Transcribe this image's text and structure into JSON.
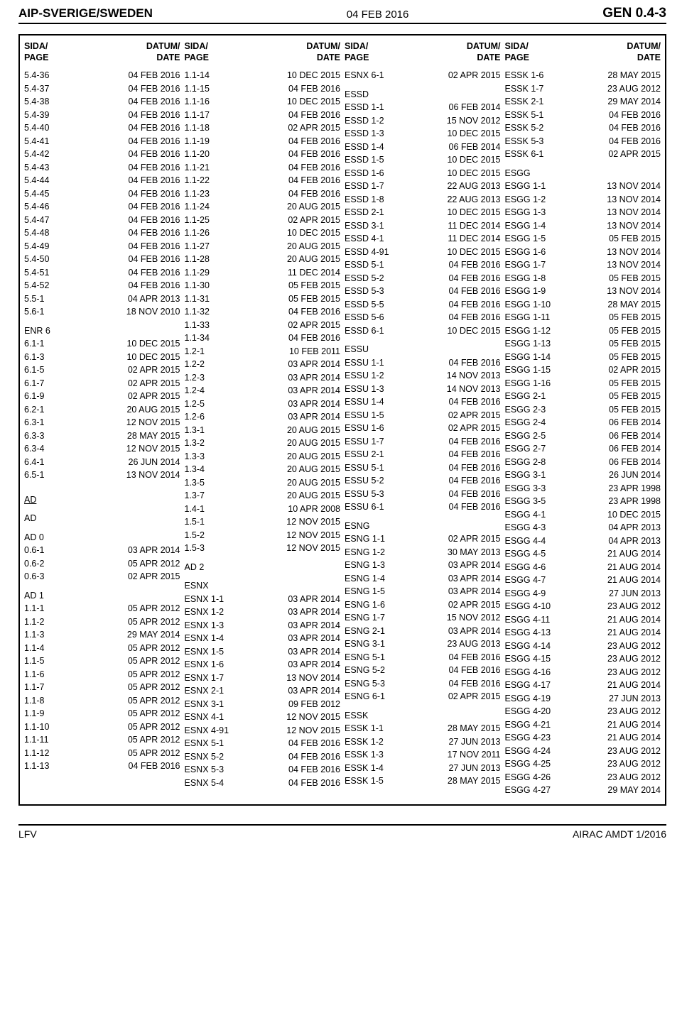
{
  "header": {
    "left": "AIP-SVERIGE/SWEDEN",
    "center": "04 FEB 2016",
    "right": "GEN 0.4-3"
  },
  "footer": {
    "left": "LFV",
    "right": "AIRAC AMDT 1/2016"
  },
  "colhead": {
    "page": "SIDA/\nPAGE",
    "date": "DATUM/\nDATE"
  },
  "col1": [
    {
      "p": "5.4-36",
      "d": "04 FEB 2016"
    },
    {
      "p": "5.4-37",
      "d": "04 FEB 2016"
    },
    {
      "p": "5.4-38",
      "d": "04 FEB 2016"
    },
    {
      "p": "5.4-39",
      "d": "04 FEB 2016"
    },
    {
      "p": "5.4-40",
      "d": "04 FEB 2016"
    },
    {
      "p": "5.4-41",
      "d": "04 FEB 2016"
    },
    {
      "p": "5.4-42",
      "d": "04 FEB 2016"
    },
    {
      "p": "5.4-43",
      "d": "04 FEB 2016"
    },
    {
      "p": "5.4-44",
      "d": "04 FEB 2016"
    },
    {
      "p": "5.4-45",
      "d": "04 FEB 2016"
    },
    {
      "p": "5.4-46",
      "d": "04 FEB 2016"
    },
    {
      "p": "5.4-47",
      "d": "04 FEB 2016"
    },
    {
      "p": "5.4-48",
      "d": "04 FEB 2016"
    },
    {
      "p": "5.4-49",
      "d": "04 FEB 2016"
    },
    {
      "p": "5.4-50",
      "d": "04 FEB 2016"
    },
    {
      "p": "5.4-51",
      "d": "04 FEB 2016"
    },
    {
      "p": "5.4-52",
      "d": "04 FEB 2016"
    },
    {
      "p": "5.5-1",
      "d": "04 APR 2013"
    },
    {
      "p": "5.6-1",
      "d": "18 NOV 2010"
    },
    {
      "gap": true
    },
    {
      "section": "ENR 6"
    },
    {
      "p": "6.1-1",
      "d": "10 DEC 2015"
    },
    {
      "p": "6.1-3",
      "d": "10 DEC 2015"
    },
    {
      "p": "6.1-5",
      "d": "02 APR 2015"
    },
    {
      "p": "6.1-7",
      "d": "02 APR 2015"
    },
    {
      "p": "6.1-9",
      "d": "02 APR 2015"
    },
    {
      "p": "6.2-1",
      "d": "20 AUG 2015"
    },
    {
      "p": "6.3-1",
      "d": "12 NOV 2015"
    },
    {
      "p": "6.3-3",
      "d": "28 MAY 2015"
    },
    {
      "p": "6.3-4",
      "d": "12 NOV 2015"
    },
    {
      "p": "6.4-1",
      "d": "26 JUN 2014"
    },
    {
      "p": "6.5-1",
      "d": "13 NOV 2014"
    },
    {
      "gap": true
    },
    {
      "gap": true
    },
    {
      "section": "AD",
      "u": true
    },
    {
      "gap": true
    },
    {
      "section": "AD"
    },
    {
      "gap": true
    },
    {
      "section": "AD 0"
    },
    {
      "p": "0.6-1",
      "d": "03 APR 2014"
    },
    {
      "p": "0.6-2",
      "d": "05 APR 2012"
    },
    {
      "p": "0.6-3",
      "d": "02 APR 2015"
    },
    {
      "gap": true
    },
    {
      "section": "AD 1"
    },
    {
      "p": "1.1-1",
      "d": "05 APR 2012"
    },
    {
      "p": "1.1-2",
      "d": "05 APR 2012"
    },
    {
      "p": "1.1-3",
      "d": "29 MAY 2014"
    },
    {
      "p": "1.1-4",
      "d": "05 APR 2012"
    },
    {
      "p": "1.1-5",
      "d": "05 APR 2012"
    },
    {
      "p": "1.1-6",
      "d": "05 APR 2012"
    },
    {
      "p": "1.1-7",
      "d": "05 APR 2012"
    },
    {
      "p": "1.1-8",
      "d": "05 APR 2012"
    },
    {
      "p": "1.1-9",
      "d": "05 APR 2012"
    },
    {
      "p": "1.1-10",
      "d": "05 APR 2012"
    },
    {
      "p": "1.1-11",
      "d": "05 APR 2012"
    },
    {
      "p": "1.1-12",
      "d": "05 APR 2012"
    },
    {
      "p": "1.1-13",
      "d": "04 FEB 2016"
    }
  ],
  "col2": [
    {
      "p": "1.1-14",
      "d": "10 DEC 2015"
    },
    {
      "p": "1.1-15",
      "d": "04 FEB 2016"
    },
    {
      "p": "1.1-16",
      "d": "10 DEC 2015"
    },
    {
      "p": "1.1-17",
      "d": "04 FEB 2016"
    },
    {
      "p": "1.1-18",
      "d": "02 APR 2015"
    },
    {
      "p": "1.1-19",
      "d": "04 FEB 2016"
    },
    {
      "p": "1.1-20",
      "d": "04 FEB 2016"
    },
    {
      "p": "1.1-21",
      "d": "04 FEB 2016"
    },
    {
      "p": "1.1-22",
      "d": "04 FEB 2016"
    },
    {
      "p": "1.1-23",
      "d": "04 FEB 2016"
    },
    {
      "p": "1.1-24",
      "d": "20 AUG 2015"
    },
    {
      "p": "1.1-25",
      "d": "02 APR 2015"
    },
    {
      "p": "1.1-26",
      "d": "10 DEC 2015"
    },
    {
      "p": "1.1-27",
      "d": "20 AUG 2015"
    },
    {
      "p": "1.1-28",
      "d": "20 AUG 2015"
    },
    {
      "p": "1.1-29",
      "d": "11 DEC 2014"
    },
    {
      "p": "1.1-30",
      "d": "05 FEB 2015"
    },
    {
      "p": "1.1-31",
      "d": "05 FEB 2015"
    },
    {
      "p": "1.1-32",
      "d": "04 FEB 2016"
    },
    {
      "p": "1.1-33",
      "d": "02 APR 2015"
    },
    {
      "p": "1.1-34",
      "d": "04 FEB 2016"
    },
    {
      "p": "1.2-1",
      "d": "10 FEB 2011"
    },
    {
      "p": "1.2-2",
      "d": "03 APR 2014"
    },
    {
      "p": "1.2-3",
      "d": "03 APR 2014"
    },
    {
      "p": "1.2-4",
      "d": "03 APR 2014"
    },
    {
      "p": "1.2-5",
      "d": "03 APR 2014"
    },
    {
      "p": "1.2-6",
      "d": "03 APR 2014"
    },
    {
      "p": "1.3-1",
      "d": "20 AUG 2015"
    },
    {
      "p": "1.3-2",
      "d": "20 AUG 2015"
    },
    {
      "p": "1.3-3",
      "d": "20 AUG 2015"
    },
    {
      "p": "1.3-4",
      "d": "20 AUG 2015"
    },
    {
      "p": "1.3-5",
      "d": "20 AUG 2015"
    },
    {
      "p": "1.3-7",
      "d": "20 AUG 2015"
    },
    {
      "p": "1.4-1",
      "d": "10 APR 2008"
    },
    {
      "p": "1.5-1",
      "d": "12 NOV 2015"
    },
    {
      "p": "1.5-2",
      "d": "12 NOV 2015"
    },
    {
      "p": "1.5-3",
      "d": "12 NOV 2015"
    },
    {
      "gap": true
    },
    {
      "section": "AD 2"
    },
    {
      "gap": true
    },
    {
      "section": "ESNX"
    },
    {
      "p": "ESNX 1-1",
      "d": "03 APR 2014"
    },
    {
      "p": "ESNX 1-2",
      "d": "03 APR 2014"
    },
    {
      "p": "ESNX 1-3",
      "d": "03 APR 2014"
    },
    {
      "p": "ESNX 1-4",
      "d": "03 APR 2014"
    },
    {
      "p": "ESNX 1-5",
      "d": "03 APR 2014"
    },
    {
      "p": "ESNX 1-6",
      "d": "03 APR 2014"
    },
    {
      "p": "ESNX 1-7",
      "d": "13 NOV 2014"
    },
    {
      "p": "ESNX 2-1",
      "d": "03 APR 2014"
    },
    {
      "p": "ESNX 3-1",
      "d": "09 FEB 2012"
    },
    {
      "p": "ESNX 4-1",
      "d": "12 NOV 2015"
    },
    {
      "p": "ESNX 4-91",
      "d": "12 NOV 2015"
    },
    {
      "p": "ESNX 5-1",
      "d": "04 FEB 2016"
    },
    {
      "p": "ESNX 5-2",
      "d": "04 FEB 2016"
    },
    {
      "p": "ESNX 5-3",
      "d": "04 FEB 2016"
    },
    {
      "p": "ESNX 5-4",
      "d": "04 FEB 2016"
    }
  ],
  "col3": [
    {
      "p": "ESNX 6-1",
      "d": "02 APR 2015"
    },
    {
      "gap": true
    },
    {
      "section": "ESSD"
    },
    {
      "p": "ESSD 1-1",
      "d": "06 FEB 2014"
    },
    {
      "p": "ESSD 1-2",
      "d": "15 NOV 2012"
    },
    {
      "p": "ESSD 1-3",
      "d": "10 DEC 2015"
    },
    {
      "p": "ESSD 1-4",
      "d": "06 FEB 2014"
    },
    {
      "p": "ESSD 1-5",
      "d": "10 DEC 2015"
    },
    {
      "p": "ESSD 1-6",
      "d": "10 DEC 2015"
    },
    {
      "p": "ESSD 1-7",
      "d": "22 AUG 2013"
    },
    {
      "p": "ESSD 1-8",
      "d": "22 AUG 2013"
    },
    {
      "p": "ESSD 2-1",
      "d": "10 DEC 2015"
    },
    {
      "p": "ESSD 3-1",
      "d": "11 DEC 2014"
    },
    {
      "p": "ESSD 4-1",
      "d": "11 DEC 2014"
    },
    {
      "p": "ESSD 4-91",
      "d": "10 DEC 2015"
    },
    {
      "p": "ESSD 5-1",
      "d": "04 FEB 2016"
    },
    {
      "p": "ESSD 5-2",
      "d": "04 FEB 2016"
    },
    {
      "p": "ESSD 5-3",
      "d": "04 FEB 2016"
    },
    {
      "p": "ESSD 5-5",
      "d": "04 FEB 2016"
    },
    {
      "p": "ESSD 5-6",
      "d": "04 FEB 2016"
    },
    {
      "p": "ESSD 6-1",
      "d": "10 DEC 2015"
    },
    {
      "gap": true
    },
    {
      "section": "ESSU"
    },
    {
      "p": "ESSU 1-1",
      "d": "04 FEB 2016"
    },
    {
      "p": "ESSU 1-2",
      "d": "14 NOV 2013"
    },
    {
      "p": "ESSU 1-3",
      "d": "14 NOV 2013"
    },
    {
      "p": "ESSU 1-4",
      "d": "04 FEB 2016"
    },
    {
      "p": "ESSU 1-5",
      "d": "02 APR 2015"
    },
    {
      "p": "ESSU 1-6",
      "d": "02 APR 2015"
    },
    {
      "p": "ESSU 1-7",
      "d": "04 FEB 2016"
    },
    {
      "p": "ESSU 2-1",
      "d": "04 FEB 2016"
    },
    {
      "p": "ESSU 5-1",
      "d": "04 FEB 2016"
    },
    {
      "p": "ESSU 5-2",
      "d": "04 FEB 2016"
    },
    {
      "p": "ESSU 5-3",
      "d": "04 FEB 2016"
    },
    {
      "p": "ESSU 6-1",
      "d": "04 FEB 2016"
    },
    {
      "gap": true
    },
    {
      "section": "ESNG"
    },
    {
      "p": "ESNG 1-1",
      "d": "02 APR 2015"
    },
    {
      "p": "ESNG 1-2",
      "d": "30 MAY 2013"
    },
    {
      "p": "ESNG 1-3",
      "d": "03 APR 2014"
    },
    {
      "p": "ESNG 1-4",
      "d": "03 APR 2014"
    },
    {
      "p": "ESNG 1-5",
      "d": "03 APR 2014"
    },
    {
      "p": "ESNG 1-6",
      "d": "02 APR 2015"
    },
    {
      "p": "ESNG 1-7",
      "d": "15 NOV 2012"
    },
    {
      "p": "ESNG 2-1",
      "d": "03 APR 2014"
    },
    {
      "p": "ESNG 3-1",
      "d": "23 AUG 2013"
    },
    {
      "p": "ESNG 5-1",
      "d": "04 FEB 2016"
    },
    {
      "p": "ESNG 5-2",
      "d": "04 FEB 2016"
    },
    {
      "p": "ESNG 5-3",
      "d": "04 FEB 2016"
    },
    {
      "p": "ESNG 6-1",
      "d": "02 APR 2015"
    },
    {
      "gap": true
    },
    {
      "section": "ESSK"
    },
    {
      "p": "ESSK 1-1",
      "d": "28 MAY 2015"
    },
    {
      "p": "ESSK 1-2",
      "d": "27 JUN 2013"
    },
    {
      "p": "ESSK 1-3",
      "d": "17 NOV 2011"
    },
    {
      "p": "ESSK 1-4",
      "d": "27 JUN 2013"
    },
    {
      "p": "ESSK 1-5",
      "d": "28 MAY 2015"
    }
  ],
  "col4": [
    {
      "p": "ESSK 1-6",
      "d": "28 MAY 2015"
    },
    {
      "p": "ESSK 1-7",
      "d": "23 AUG 2012"
    },
    {
      "p": "ESSK 2-1",
      "d": "29 MAY 2014"
    },
    {
      "p": "ESSK 5-1",
      "d": "04 FEB 2016"
    },
    {
      "p": "ESSK 5-2",
      "d": "04 FEB 2016"
    },
    {
      "p": "ESSK 5-3",
      "d": "04 FEB 2016"
    },
    {
      "p": "ESSK 6-1",
      "d": "02 APR 2015"
    },
    {
      "gap": true
    },
    {
      "section": "ESGG"
    },
    {
      "p": "ESGG 1-1",
      "d": "13 NOV 2014"
    },
    {
      "p": "ESGG 1-2",
      "d": "13 NOV 2014"
    },
    {
      "p": "ESGG 1-3",
      "d": "13 NOV 2014"
    },
    {
      "p": "ESGG 1-4",
      "d": "13 NOV 2014"
    },
    {
      "p": "ESGG 1-5",
      "d": "05 FEB 2015"
    },
    {
      "p": "ESGG 1-6",
      "d": "13 NOV 2014"
    },
    {
      "p": "ESGG 1-7",
      "d": "13 NOV 2014"
    },
    {
      "p": "ESGG 1-8",
      "d": "05 FEB 2015"
    },
    {
      "p": "ESGG 1-9",
      "d": "13 NOV 2014"
    },
    {
      "p": "ESGG 1-10",
      "d": "28 MAY 2015"
    },
    {
      "p": "ESGG 1-11",
      "d": "05 FEB 2015"
    },
    {
      "p": "ESGG 1-12",
      "d": "05 FEB 2015"
    },
    {
      "p": "ESGG 1-13",
      "d": "05 FEB 2015"
    },
    {
      "p": "ESGG 1-14",
      "d": "05 FEB 2015"
    },
    {
      "p": "ESGG 1-15",
      "d": "02 APR 2015"
    },
    {
      "p": "ESGG 1-16",
      "d": "05 FEB 2015"
    },
    {
      "p": "ESGG 2-1",
      "d": "05 FEB 2015"
    },
    {
      "p": "ESGG 2-3",
      "d": "05 FEB 2015"
    },
    {
      "p": "ESGG 2-4",
      "d": "06 FEB 2014"
    },
    {
      "p": "ESGG 2-5",
      "d": "06 FEB 2014"
    },
    {
      "p": "ESGG 2-7",
      "d": "06 FEB 2014"
    },
    {
      "p": "ESGG 2-8",
      "d": "06 FEB 2014"
    },
    {
      "p": "ESGG 3-1",
      "d": "26 JUN 2014"
    },
    {
      "p": "ESGG 3-3",
      "d": "23 APR 1998"
    },
    {
      "p": "ESGG 3-5",
      "d": "23 APR 1998"
    },
    {
      "p": "ESGG 4-1",
      "d": "10 DEC 2015"
    },
    {
      "p": "ESGG 4-3",
      "d": "04 APR 2013"
    },
    {
      "p": "ESGG 4-4",
      "d": "04 APR 2013"
    },
    {
      "p": "ESGG 4-5",
      "d": "21 AUG 2014"
    },
    {
      "p": "ESGG 4-6",
      "d": "21 AUG 2014"
    },
    {
      "p": "ESGG 4-7",
      "d": "21 AUG 2014"
    },
    {
      "p": "ESGG 4-9",
      "d": "27 JUN 2013"
    },
    {
      "p": "ESGG 4-10",
      "d": "23 AUG 2012"
    },
    {
      "p": "ESGG 4-11",
      "d": "21 AUG 2014"
    },
    {
      "p": "ESGG 4-13",
      "d": "21 AUG 2014"
    },
    {
      "p": "ESGG 4-14",
      "d": "23 AUG 2012"
    },
    {
      "p": "ESGG 4-15",
      "d": "23 AUG 2012"
    },
    {
      "p": "ESGG 4-16",
      "d": "23 AUG 2012"
    },
    {
      "p": "ESGG 4-17",
      "d": "21 AUG 2014"
    },
    {
      "p": "ESGG 4-19",
      "d": "27 JUN 2013"
    },
    {
      "p": "ESGG 4-20",
      "d": "23 AUG 2012"
    },
    {
      "p": "ESGG 4-21",
      "d": "21 AUG 2014"
    },
    {
      "p": "ESGG 4-23",
      "d": "21 AUG 2014"
    },
    {
      "p": "ESGG 4-24",
      "d": "23 AUG 2012"
    },
    {
      "p": "ESGG 4-25",
      "d": "23 AUG 2012"
    },
    {
      "p": "ESGG 4-26",
      "d": "23 AUG 2012"
    },
    {
      "p": "ESGG 4-27",
      "d": "29 MAY 2014"
    }
  ]
}
